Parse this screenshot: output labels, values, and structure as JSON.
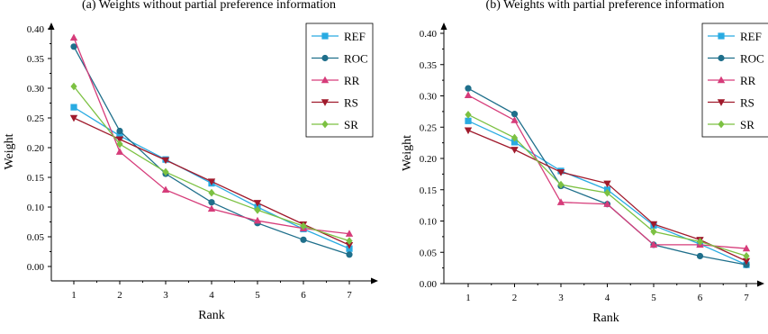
{
  "chart_data": [
    {
      "type": "line",
      "title": "(a) Weights without partial preference information",
      "xlabel": "Rank",
      "ylabel": "Weight",
      "x": [
        1,
        2,
        3,
        4,
        5,
        6,
        7
      ],
      "ylim": [
        -0.03,
        0.42
      ],
      "yticks": [
        "0.00",
        "0.05",
        "0.10",
        "0.15",
        "0.20",
        "0.25",
        "0.30",
        "0.35",
        "0.40"
      ],
      "legend_position": "top-right",
      "series": [
        {
          "name": "REF",
          "color": "#29abe2",
          "marker": "square",
          "values": [
            0.268,
            0.22,
            0.18,
            0.14,
            0.1,
            0.063,
            0.03
          ]
        },
        {
          "name": "ROC",
          "color": "#1f6f8b",
          "marker": "circle",
          "values": [
            0.37,
            0.228,
            0.156,
            0.108,
            0.073,
            0.045,
            0.02
          ]
        },
        {
          "name": "RR",
          "color": "#d63c7a",
          "marker": "triangle",
          "values": [
            0.385,
            0.193,
            0.129,
            0.097,
            0.077,
            0.064,
            0.055
          ]
        },
        {
          "name": "RS",
          "color": "#a01a2c",
          "marker": "triangle-down",
          "values": [
            0.25,
            0.214,
            0.179,
            0.143,
            0.107,
            0.071,
            0.036
          ]
        },
        {
          "name": "SR",
          "color": "#7cc142",
          "marker": "diamond",
          "values": [
            0.303,
            0.206,
            0.159,
            0.124,
            0.095,
            0.068,
            0.043
          ]
        }
      ]
    },
    {
      "type": "line",
      "title": "(b) Weights with partial preference information",
      "xlabel": "Rank",
      "ylabel": "Weight",
      "x": [
        1,
        2,
        3,
        4,
        5,
        6,
        7
      ],
      "ylim": [
        0,
        0.42
      ],
      "yticks": [
        "0.00",
        "0.05",
        "0.10",
        "0.15",
        "0.20",
        "0.25",
        "0.30",
        "0.35",
        "0.40"
      ],
      "legend_position": "top-right",
      "series": [
        {
          "name": "REF",
          "color": "#29abe2",
          "marker": "square",
          "values": [
            0.26,
            0.226,
            0.18,
            0.15,
            0.093,
            0.063,
            0.03
          ]
        },
        {
          "name": "ROC",
          "color": "#1f6f8b",
          "marker": "circle",
          "values": [
            0.312,
            0.271,
            0.156,
            0.127,
            0.062,
            0.044,
            0.03
          ]
        },
        {
          "name": "RR",
          "color": "#d63c7a",
          "marker": "triangle",
          "values": [
            0.301,
            0.261,
            0.13,
            0.127,
            0.062,
            0.062,
            0.056
          ]
        },
        {
          "name": "RS",
          "color": "#a01a2c",
          "marker": "triangle-down",
          "values": [
            0.245,
            0.214,
            0.178,
            0.16,
            0.095,
            0.07,
            0.036
          ]
        },
        {
          "name": "SR",
          "color": "#7cc142",
          "marker": "diamond",
          "values": [
            0.27,
            0.233,
            0.158,
            0.145,
            0.083,
            0.067,
            0.044
          ]
        }
      ]
    }
  ]
}
